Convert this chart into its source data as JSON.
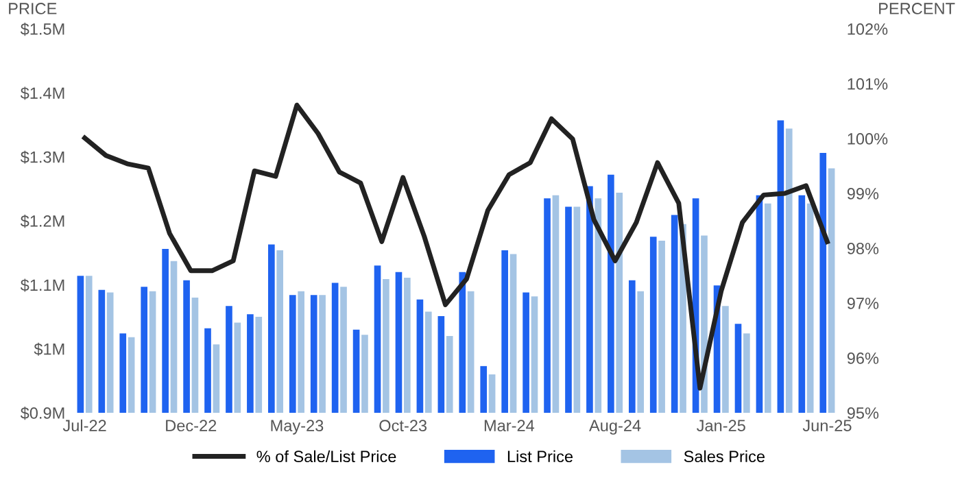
{
  "chart_data": {
    "type": "bar",
    "ylabel": "PRICE",
    "y2label": "PERCENT",
    "categories": [
      "Jul-22",
      null,
      null,
      null,
      null,
      "Dec-22",
      null,
      null,
      null,
      null,
      "May-23",
      null,
      null,
      null,
      null,
      "Oct-23",
      null,
      null,
      null,
      null,
      "Mar-24",
      null,
      null,
      null,
      null,
      "Aug-24",
      null,
      null,
      null,
      null,
      "Jan-25",
      null,
      null,
      null,
      null,
      "Jun-25"
    ],
    "series": [
      {
        "name": "% of Sale/List Price",
        "type": "line",
        "axis": "y2",
        "color": "#222222",
        "values": [
          100.01,
          99.69,
          99.54,
          99.46,
          98.27,
          97.59,
          97.59,
          97.77,
          99.41,
          99.31,
          100.61,
          100.09,
          99.39,
          99.19,
          98.12,
          99.29,
          98.22,
          96.97,
          97.44,
          98.69,
          99.34,
          99.56,
          100.36,
          99.99,
          98.52,
          97.77,
          98.47,
          99.56,
          98.82,
          95.45,
          97.22,
          98.47,
          98.97,
          99.0,
          99.14,
          98.12
        ]
      },
      {
        "name": "List Price",
        "color": "#1f63f0",
        "values": [
          1.114,
          1.092,
          1.024,
          1.097,
          1.156,
          1.107,
          1.032,
          1.067,
          1.054,
          1.163,
          1.084,
          1.084,
          1.103,
          1.03,
          1.13,
          1.12,
          1.077,
          1.051,
          1.12,
          0.973,
          1.154,
          1.088,
          1.235,
          1.222,
          1.254,
          1.272,
          1.107,
          1.175,
          1.209,
          1.235,
          1.099,
          1.039,
          1.24,
          1.357,
          1.24,
          1.306
        ]
      },
      {
        "name": "Sales Price",
        "color": "#a4c4e4",
        "values": [
          1.114,
          1.088,
          1.018,
          1.09,
          1.137,
          1.08,
          1.007,
          1.041,
          1.05,
          1.154,
          1.09,
          1.084,
          1.097,
          1.022,
          1.109,
          1.111,
          1.058,
          1.02,
          1.09,
          0.96,
          1.148,
          1.082,
          1.24,
          1.222,
          1.235,
          1.244,
          1.09,
          1.169,
          1.195,
          1.177,
          1.067,
          1.024,
          1.227,
          1.344,
          1.227,
          1.282
        ]
      }
    ],
    "ylim": [
      0.9,
      1.5
    ],
    "yticks": [
      {
        "value": 0.9,
        "label": "$0.9M"
      },
      {
        "value": 1.0,
        "label": "$1M"
      },
      {
        "value": 1.1,
        "label": "$1.1M"
      },
      {
        "value": 1.2,
        "label": "$1.2M"
      },
      {
        "value": 1.3,
        "label": "$1.3M"
      },
      {
        "value": 1.4,
        "label": "$1.4M"
      },
      {
        "value": 1.5,
        "label": "$1.5M"
      }
    ],
    "y2lim": [
      95,
      102
    ],
    "y2ticks": [
      {
        "value": 95,
        "label": "95%"
      },
      {
        "value": 96,
        "label": "96%"
      },
      {
        "value": 97,
        "label": "97%"
      },
      {
        "value": 98,
        "label": "98%"
      },
      {
        "value": 99,
        "label": "99%"
      },
      {
        "value": 100,
        "label": "100%"
      },
      {
        "value": 101,
        "label": "101%"
      },
      {
        "value": 102,
        "label": "102%"
      }
    ],
    "grid": false,
    "legend": "bottom"
  }
}
